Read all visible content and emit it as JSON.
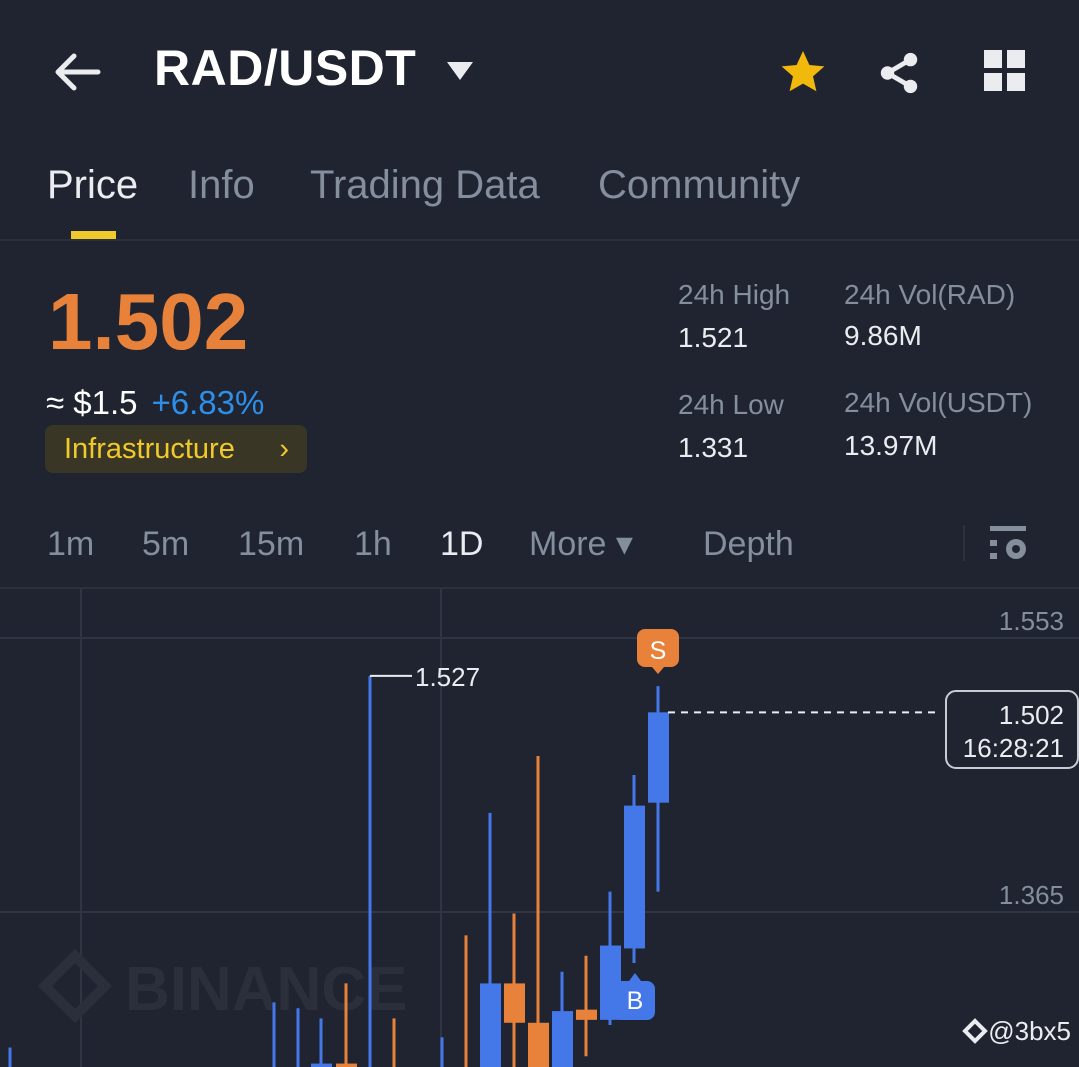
{
  "header": {
    "title": "RAD/USDT",
    "icons": [
      "arrow-left-icon",
      "caret-down-icon",
      "star-icon",
      "share-icon",
      "grid-icon"
    ],
    "star_color": "#f0b90b"
  },
  "tabs": [
    {
      "label": "Price",
      "active": true
    },
    {
      "label": "Info"
    },
    {
      "label": "Trading Data"
    },
    {
      "label": "Community"
    }
  ],
  "ticker": {
    "last_price": "1.502",
    "fiat": "≈ $1.5",
    "change": "+6.83%",
    "tag": "Infrastructure",
    "tag_arrow": "›"
  },
  "stats": {
    "high_label": "24h High",
    "high": "1.521",
    "low_label": "24h Low",
    "low": "1.331",
    "vol_base_label": "24h Vol(RAD)",
    "vol_base": "9.86M",
    "vol_quote_label": "24h Vol(USDT)",
    "vol_quote": "13.97M"
  },
  "intervals": [
    {
      "label": "1m"
    },
    {
      "label": "5m"
    },
    {
      "label": "15m"
    },
    {
      "label": "1h"
    },
    {
      "label": "1D",
      "active": true
    },
    {
      "label": "More ▾"
    },
    {
      "label": "Depth"
    }
  ],
  "colors": {
    "up": "#4477e8",
    "down": "#e8823a",
    "accent": "#f0c92a",
    "positive_change": "#2e8fe8"
  },
  "chart_data": {
    "type": "candlestick",
    "ylim": [
      1.259,
      1.585
    ],
    "y_ticks": [
      "1.553",
      "1.365"
    ],
    "max_label": "1.527",
    "last_price_label": {
      "price": "1.502",
      "countdown": "16:28:21"
    },
    "markers": [
      {
        "label": "S",
        "side": "sell"
      },
      {
        "label": "B",
        "side": "buy"
      }
    ],
    "watermark": "BINANCE",
    "credit": "@3bx5",
    "candles": [
      {
        "o": 1.22,
        "h": 1.272,
        "l": 1.2,
        "c": 1.24
      },
      {
        "o": 1.23,
        "h": 1.303,
        "l": 1.2,
        "c": 1.25
      },
      {
        "o": 1.23,
        "h": 1.299,
        "l": 1.2,
        "c": 1.25
      },
      {
        "o": 1.24,
        "h": 1.292,
        "l": 1.2,
        "c": 1.261
      },
      {
        "o": 1.261,
        "h": 1.316,
        "l": 1.2,
        "c": 1.24
      },
      {
        "o": 1.22,
        "h": 1.527,
        "l": 1.2,
        "c": 1.25
      },
      {
        "o": 1.25,
        "h": 1.292,
        "l": 1.2,
        "c": 1.23
      },
      {
        "o": 1.22,
        "h": 1.279,
        "l": 1.2,
        "c": 1.24
      },
      {
        "o": 1.25,
        "h": 1.349,
        "l": 1.2,
        "c": 1.23
      },
      {
        "o": 1.24,
        "h": 1.433,
        "l": 1.2,
        "c": 1.316
      },
      {
        "o": 1.316,
        "h": 1.364,
        "l": 1.24,
        "c": 1.289
      },
      {
        "o": 1.289,
        "h": 1.472,
        "l": 1.2,
        "c": 1.24
      },
      {
        "o": 1.24,
        "h": 1.324,
        "l": 1.2,
        "c": 1.297
      },
      {
        "o": 1.298,
        "h": 1.335,
        "l": 1.266,
        "c": 1.291
      },
      {
        "o": 1.291,
        "h": 1.379,
        "l": 1.2875,
        "c": 1.342
      },
      {
        "o": 1.34,
        "h": 1.459,
        "l": 1.33,
        "c": 1.438
      },
      {
        "o": 1.44,
        "h": 1.52,
        "l": 1.379,
        "c": 1.502
      }
    ]
  }
}
